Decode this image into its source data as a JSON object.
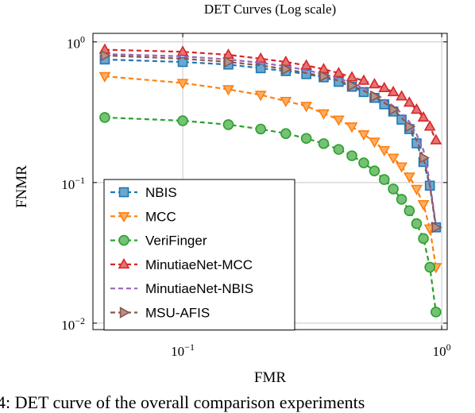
{
  "chart_data": {
    "type": "line",
    "title": "DET Curves (Log scale)",
    "xlabel": "FMR",
    "ylabel": "FNMR",
    "xscale": "log",
    "yscale": "log",
    "xlim": [
      0.045,
      1.05
    ],
    "ylim": [
      0.009,
      1.15
    ],
    "xticks": [
      {
        "value": 0.1,
        "label": "10^-1"
      },
      {
        "value": 1,
        "label": "10^0"
      }
    ],
    "yticks": [
      {
        "value": 0.01,
        "label": "10^-2"
      },
      {
        "value": 0.1,
        "label": "10^-1"
      },
      {
        "value": 1,
        "label": "10^0"
      }
    ],
    "grid": true,
    "legend_position": "bottom-left",
    "series": [
      {
        "name": "NBIS",
        "color": "#1f77b4",
        "marker": "square",
        "marker_every": 1,
        "x": [
          0.05,
          0.1,
          0.15,
          0.2,
          0.25,
          0.3,
          0.35,
          0.4,
          0.45,
          0.5,
          0.55,
          0.6,
          0.65,
          0.7,
          0.75,
          0.8,
          0.85,
          0.9,
          0.95
        ],
        "y": [
          0.75,
          0.72,
          0.69,
          0.65,
          0.62,
          0.59,
          0.56,
          0.52,
          0.48,
          0.44,
          0.4,
          0.36,
          0.32,
          0.28,
          0.24,
          0.19,
          0.14,
          0.095,
          0.048
        ]
      },
      {
        "name": "MCC",
        "color": "#ff7f0e",
        "marker": "triangle-down",
        "marker_every": 1,
        "x": [
          0.05,
          0.1,
          0.15,
          0.2,
          0.25,
          0.3,
          0.35,
          0.4,
          0.45,
          0.5,
          0.55,
          0.6,
          0.65,
          0.7,
          0.75,
          0.8,
          0.85,
          0.9,
          0.95
        ],
        "y": [
          0.57,
          0.51,
          0.46,
          0.42,
          0.38,
          0.35,
          0.31,
          0.28,
          0.25,
          0.22,
          0.195,
          0.17,
          0.15,
          0.13,
          0.11,
          0.09,
          0.07,
          0.047,
          0.025
        ]
      },
      {
        "name": "VeriFinger",
        "color": "#2ca02c",
        "marker": "circle",
        "marker_every": 1,
        "x": [
          0.05,
          0.1,
          0.15,
          0.2,
          0.25,
          0.3,
          0.35,
          0.4,
          0.45,
          0.5,
          0.55,
          0.6,
          0.65,
          0.7,
          0.75,
          0.8,
          0.85,
          0.9,
          0.95
        ],
        "y": [
          0.29,
          0.275,
          0.258,
          0.24,
          0.223,
          0.206,
          0.189,
          0.172,
          0.155,
          0.138,
          0.121,
          0.105,
          0.09,
          0.076,
          0.063,
          0.051,
          0.04,
          0.025,
          0.012
        ]
      },
      {
        "name": "MinutiaeNet-MCC",
        "color": "#d62728",
        "marker": "triangle-up",
        "marker_every": 1,
        "x": [
          0.05,
          0.1,
          0.15,
          0.2,
          0.25,
          0.3,
          0.35,
          0.4,
          0.45,
          0.5,
          0.55,
          0.6,
          0.65,
          0.7,
          0.75,
          0.8,
          0.85,
          0.9,
          0.95
        ],
        "y": [
          0.88,
          0.85,
          0.81,
          0.76,
          0.72,
          0.68,
          0.64,
          0.6,
          0.56,
          0.53,
          0.5,
          0.47,
          0.44,
          0.41,
          0.37,
          0.33,
          0.29,
          0.25,
          0.2
        ]
      },
      {
        "name": "MinutiaeNet-NBIS",
        "color": "#9467bd",
        "marker": "none",
        "marker_every": 1,
        "x": [
          0.05,
          0.1,
          0.15,
          0.2,
          0.25,
          0.3,
          0.35,
          0.4,
          0.45,
          0.5,
          0.55,
          0.6,
          0.65,
          0.7,
          0.75,
          0.8,
          0.85,
          0.9,
          0.95
        ],
        "y": [
          0.82,
          0.79,
          0.75,
          0.71,
          0.67,
          0.63,
          0.59,
          0.55,
          0.51,
          0.47,
          0.43,
          0.39,
          0.35,
          0.31,
          0.27,
          0.22,
          0.17,
          0.1,
          0.05
        ]
      },
      {
        "name": "MSU-AFIS",
        "color": "#8c564b",
        "marker": "triangle-right",
        "marker_every": 2,
        "x": [
          0.05,
          0.1,
          0.15,
          0.2,
          0.25,
          0.3,
          0.35,
          0.4,
          0.45,
          0.5,
          0.55,
          0.6,
          0.65,
          0.7,
          0.75,
          0.8,
          0.85,
          0.9,
          0.95
        ],
        "y": [
          0.8,
          0.76,
          0.72,
          0.68,
          0.64,
          0.6,
          0.57,
          0.53,
          0.49,
          0.45,
          0.41,
          0.37,
          0.33,
          0.29,
          0.25,
          0.2,
          0.15,
          0.095,
          0.048
        ]
      }
    ]
  },
  "caption": "4: DET curve of the overall comparison experiments"
}
